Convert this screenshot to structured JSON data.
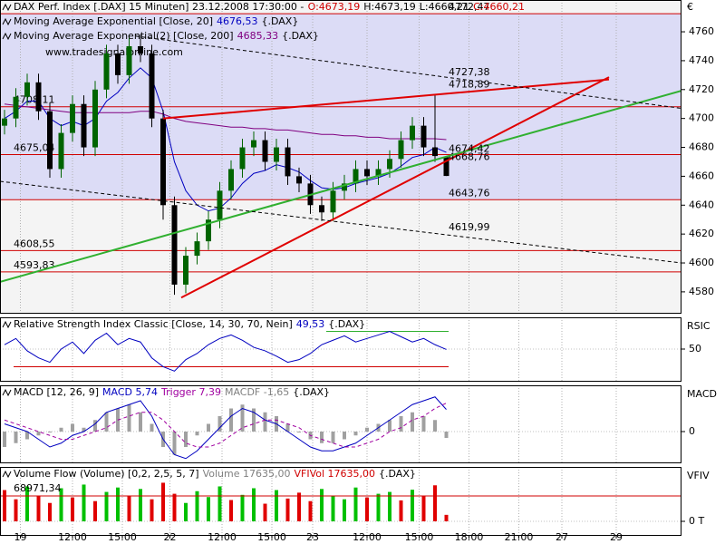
{
  "chart_data": [
    {
      "type": "candlestick",
      "header": [
        [
          {
            "text": "DAX Perf. Index [.DAX]  15 Minuten] 23.12.2008 17:30:00 -",
            "color": "#000000"
          },
          {
            "text": "O:4673,19",
            "color": "#d00000"
          },
          {
            "text": "H:4673,19",
            "color": "#000000"
          },
          {
            "text": "L:4660,21",
            "color": "#000000"
          },
          {
            "text": "C:4660,21",
            "color": "#d00000"
          }
        ],
        [
          {
            "text": "Moving Average Exponential [Close, 20]",
            "color": "#000000"
          },
          {
            "text": "4676,53",
            "color": "#0000c0"
          },
          {
            "text": "{.DAX}",
            "color": "#000000"
          }
        ],
        [
          {
            "text": "Moving Average Exponential(2) [Close, 200]",
            "color": "#000000"
          },
          {
            "text": "4685,33",
            "color": "#800080"
          },
          {
            "text": "{.DAX}",
            "color": "#000000"
          }
        ]
      ],
      "watermark": "www.tradesignalonline.com",
      "axis_label": "€",
      "x": [
        0,
        1,
        2,
        3,
        4,
        5,
        6,
        7,
        8,
        9,
        10,
        11,
        12,
        13,
        14,
        15,
        16,
        17,
        18,
        19,
        20,
        21,
        22,
        23,
        24,
        25,
        26,
        27,
        28,
        29,
        30,
        31,
        32,
        33,
        34,
        35,
        36,
        37,
        38,
        39
      ],
      "open": [
        4695,
        4700,
        4715,
        4725,
        4705,
        4665,
        4690,
        4710,
        4680,
        4720,
        4745,
        4730,
        4750,
        4745,
        4700,
        4640,
        4585,
        4605,
        4615,
        4630,
        4650,
        4665,
        4680,
        4685,
        4670,
        4680,
        4660,
        4655,
        4640,
        4635,
        4650,
        4655,
        4665,
        4660,
        4665,
        4672,
        4685,
        4695,
        4680,
        4673.19
      ],
      "high": [
        4706,
        4721,
        4731,
        4731,
        4711,
        4696,
        4716,
        4716,
        4726,
        4751,
        4751,
        4758,
        4758,
        4751,
        4706,
        4646,
        4611,
        4621,
        4636,
        4656,
        4671,
        4686,
        4691,
        4691,
        4686,
        4686,
        4666,
        4661,
        4646,
        4656,
        4661,
        4671,
        4671,
        4671,
        4678,
        4691,
        4701,
        4701,
        4716,
        4673.19
      ],
      "low": [
        4689,
        4694,
        4709,
        4699,
        4659,
        4659,
        4684,
        4674,
        4674,
        4714,
        4724,
        4724,
        4739,
        4694,
        4630,
        4578,
        4579,
        4599,
        4609,
        4624,
        4644,
        4659,
        4674,
        4664,
        4664,
        4654,
        4649,
        4634,
        4629,
        4629,
        4644,
        4649,
        4654,
        4654,
        4659,
        4666,
        4679,
        4674,
        4670,
        4660.21
      ],
      "close": [
        4700,
        4715,
        4725,
        4705,
        4665,
        4690,
        4710,
        4680,
        4720,
        4745,
        4730,
        4750,
        4745,
        4700,
        4640,
        4585,
        4605,
        4615,
        4630,
        4650,
        4665,
        4680,
        4685,
        4670,
        4680,
        4660,
        4655,
        4640,
        4635,
        4650,
        4655,
        4665,
        4660,
        4665,
        4672,
        4685,
        4695,
        4680,
        4674,
        4660.21
      ],
      "up_color": "#006400",
      "down_color": "#000000",
      "series": [
        {
          "color": "#0000c0",
          "values": [
            4700,
            4705,
            4712,
            4712,
            4700,
            4695,
            4698,
            4695,
            4700,
            4712,
            4718,
            4728,
            4735,
            4728,
            4705,
            4670,
            4650,
            4640,
            4636,
            4638,
            4645,
            4655,
            4662,
            4664,
            4668,
            4666,
            4663,
            4657,
            4652,
            4651,
            4652,
            4655,
            4657,
            4659,
            4662,
            4667,
            4673,
            4675,
            4680,
            4676.53
          ]
        },
        {
          "color": "#800080",
          "values": [
            4710,
            4709,
            4708,
            4707,
            4706,
            4705,
            4704,
            4704,
            4704,
            4704,
            4704,
            4704,
            4705,
            4705,
            4703,
            4700,
            4698,
            4697,
            4696,
            4695,
            4694,
            4694,
            4693,
            4693,
            4692,
            4692,
            4691,
            4690,
            4689,
            4689,
            4688,
            4688,
            4687,
            4687,
            4686,
            4686,
            4686,
            4686,
            4686,
            4685.33
          ]
        }
      ],
      "levels": [
        {
          "value": 4772.47,
          "label": "4772,47",
          "side": "right"
        },
        {
          "value": 4708.11,
          "label": "4708,11",
          "side": "left"
        },
        {
          "value": 4675.04,
          "label": "4675,04",
          "side": "left"
        },
        {
          "value": 4643.76,
          "label": "4643,76",
          "side": "right"
        },
        {
          "value": 4608.55,
          "label": "4608,55",
          "side": "left"
        },
        {
          "value": 4593.83,
          "label": "4593,83",
          "side": "left"
        }
      ],
      "level_color": "#d00000",
      "band_color": "#dcdcf6",
      "trendlines": [
        {
          "color": "#e00000",
          "dashed": false,
          "x": [
            14,
            53.36
          ],
          "values": [
            4700,
            4727
          ],
          "label": {
            "x": 39.2,
            "value": 4718.89,
            "label": "4718,89"
          }
        },
        {
          "color": "#e00000",
          "dashed": false,
          "x": [
            15.6,
            53.36
          ],
          "values": [
            4576,
            4728.6
          ],
          "label": {
            "x": 39.2,
            "value": 4668.76,
            "label": "4668,76"
          }
        },
        {
          "color": "#30b030",
          "dashed": false,
          "x": [
            -0.4,
            59.76
          ],
          "values": [
            4586.9,
            4719.2
          ],
          "label": {
            "x": 39.2,
            "value": 4674.42,
            "label": "4674,42"
          }
        },
        {
          "color": "#000000",
          "dashed": true,
          "x": [
            11.6,
            59.76
          ],
          "values": [
            4757,
            4707
          ],
          "label": {
            "x": 39.2,
            "value": 4727.38,
            "label": "4727,38"
          }
        },
        {
          "color": "#000000",
          "dashed": true,
          "x": [
            -0.4,
            59.76
          ],
          "values": [
            4656.5,
            4600
          ],
          "label": {
            "x": 39.2,
            "value": 4619.99,
            "label": "4619,99"
          }
        }
      ],
      "ylim": [
        4565.5,
        4782
      ],
      "yticks": [
        4580,
        4600,
        4620,
        4640,
        4660,
        4680,
        4700,
        4720,
        4740,
        4760
      ],
      "xlim": [
        -0.4,
        59.76
      ],
      "xticks": [
        {
          "value": 1.4,
          "label": "19"
        },
        {
          "value": 6,
          "label": "12:00"
        },
        {
          "value": 10.4,
          "label": "15:00"
        },
        {
          "value": 14.6,
          "label": "22"
        },
        {
          "value": 19.2,
          "label": "12:00"
        },
        {
          "value": 23.6,
          "label": "15:00"
        },
        {
          "value": 27.2,
          "label": "23"
        },
        {
          "value": 32,
          "label": "12:00"
        },
        {
          "value": 36.6,
          "label": "15:00"
        },
        {
          "value": 41,
          "label": "18:00"
        },
        {
          "value": 45.4,
          "label": "21:00"
        },
        {
          "value": 49.2,
          "label": "27"
        },
        {
          "value": 54,
          "label": "29"
        }
      ]
    },
    {
      "type": "line",
      "header": [
        [
          {
            "text": "Relative Strength Index Classic [Close, 14, 30, 70, Nein]",
            "color": "#000000"
          },
          {
            "text": "49,53",
            "color": "#0000c0"
          },
          {
            "text": "{.DAX}",
            "color": "#000000"
          }
        ]
      ],
      "axis_label": "RSIC",
      "series": [
        {
          "color": "#0000c0",
          "values": [
            55,
            62,
            48,
            40,
            35,
            50,
            58,
            45,
            60,
            68,
            55,
            62,
            58,
            40,
            30,
            25,
            38,
            45,
            55,
            62,
            66,
            60,
            52,
            48,
            42,
            35,
            38,
            45,
            55,
            60,
            65,
            58,
            62,
            66,
            70,
            64,
            58,
            62,
            55,
            49.53
          ]
        }
      ],
      "levels": [
        {
          "value": 70,
          "color": "#30b030",
          "x": [
            28.4,
            39.2
          ]
        },
        {
          "value": 30,
          "color": "#d00000",
          "x": [
            0.8,
            39.2
          ]
        }
      ],
      "ylim": [
        14,
        86
      ],
      "yticks": [
        50
      ]
    },
    {
      "type": "combo",
      "header": [
        [
          {
            "text": "MACD [12, 26, 9]",
            "color": "#000000"
          },
          {
            "text": "MACD 5,74",
            "color": "#0000c0"
          },
          {
            "text": "Trigger 7,39",
            "color": "#a000a0"
          },
          {
            "text": "MACDF -1,65",
            "color": "#808080"
          },
          {
            "text": "{.DAX}",
            "color": "#000000"
          }
        ]
      ],
      "axis_label": "MACD",
      "bars": {
        "color": "#a0a0a0",
        "values": [
          -4,
          -3,
          -2,
          -1,
          0,
          1,
          2,
          1,
          3,
          5,
          6,
          7,
          5,
          2,
          -4,
          -6,
          -4,
          -1,
          2,
          4,
          6,
          7,
          6,
          5,
          4,
          2,
          0,
          -2,
          -3,
          -3,
          -2,
          -1,
          1,
          2,
          3,
          4,
          5,
          4,
          3,
          -1.65
        ]
      },
      "series": [
        {
          "color": "#0000c0",
          "dashed": false,
          "values": [
            2,
            1,
            0,
            -2,
            -4,
            -3,
            -1,
            0,
            2,
            5,
            6,
            7,
            8,
            4,
            -2,
            -6,
            -7,
            -5,
            -2,
            1,
            4,
            6,
            5,
            3,
            2,
            0,
            -2,
            -4,
            -5,
            -5,
            -4,
            -3,
            -1,
            1,
            3,
            5,
            7,
            8,
            9,
            5.74
          ]
        },
        {
          "color": "#a000a0",
          "dashed": true,
          "values": [
            3,
            2,
            1,
            0,
            -1,
            -2,
            -2,
            -1,
            0,
            1,
            3,
            4,
            5,
            5,
            3,
            0,
            -3,
            -4,
            -4,
            -3,
            -1,
            1,
            2,
            3,
            3,
            2,
            1,
            -1,
            -2,
            -3,
            -4,
            -4,
            -3,
            -2,
            0,
            1,
            3,
            4,
            6,
            7.39
          ]
        }
      ],
      "ylim": [
        -8,
        12
      ],
      "yticks": [
        0
      ]
    },
    {
      "type": "bar",
      "header": [
        [
          {
            "text": "Volume Flow (Volume) [0,2, 2,5, 5, 7]",
            "color": "#000000"
          },
          {
            "text": "Volume 17635,00",
            "color": "#808080"
          },
          {
            "text": "VFIVol 17635,00",
            "color": "#d00000"
          },
          {
            "text": "{.DAX}",
            "color": "#000000"
          }
        ]
      ],
      "axis_label": "VFIV",
      "values": [
        85000,
        60000,
        95000,
        70000,
        50000,
        90000,
        65000,
        100000,
        55000,
        80000,
        92000,
        70000,
        88000,
        60000,
        105000,
        75000,
        50000,
        82000,
        66000,
        95000,
        58000,
        72000,
        90000,
        48000,
        85000,
        62000,
        78000,
        55000,
        88000,
        70000,
        60000,
        92000,
        65000,
        75000,
        80000,
        57000,
        86000,
        70000,
        98000,
        17635
      ],
      "colors": [
        "#e00000",
        "#e00000",
        "#00c000",
        "#e00000",
        "#e00000",
        "#00c000",
        "#e00000",
        "#00c000",
        "#e00000",
        "#00c000",
        "#00c000",
        "#e00000",
        "#00c000",
        "#e00000",
        "#e00000",
        "#e00000",
        "#00c000",
        "#00c000",
        "#00c000",
        "#00c000",
        "#e00000",
        "#00c000",
        "#00c000",
        "#e00000",
        "#00c000",
        "#e00000",
        "#e00000",
        "#e00000",
        "#00c000",
        "#00c000",
        "#00c000",
        "#00c000",
        "#e00000",
        "#00c000",
        "#00c000",
        "#e00000",
        "#00c000",
        "#e00000",
        "#e00000",
        "#e00000"
      ],
      "levels": [
        {
          "value": 68971.34,
          "label": "68971,34",
          "color": "#d00000"
        }
      ],
      "ylim": [
        -37000,
        148000
      ],
      "yticks": [
        {
          "value": 0,
          "label": "0 T"
        }
      ]
    }
  ]
}
